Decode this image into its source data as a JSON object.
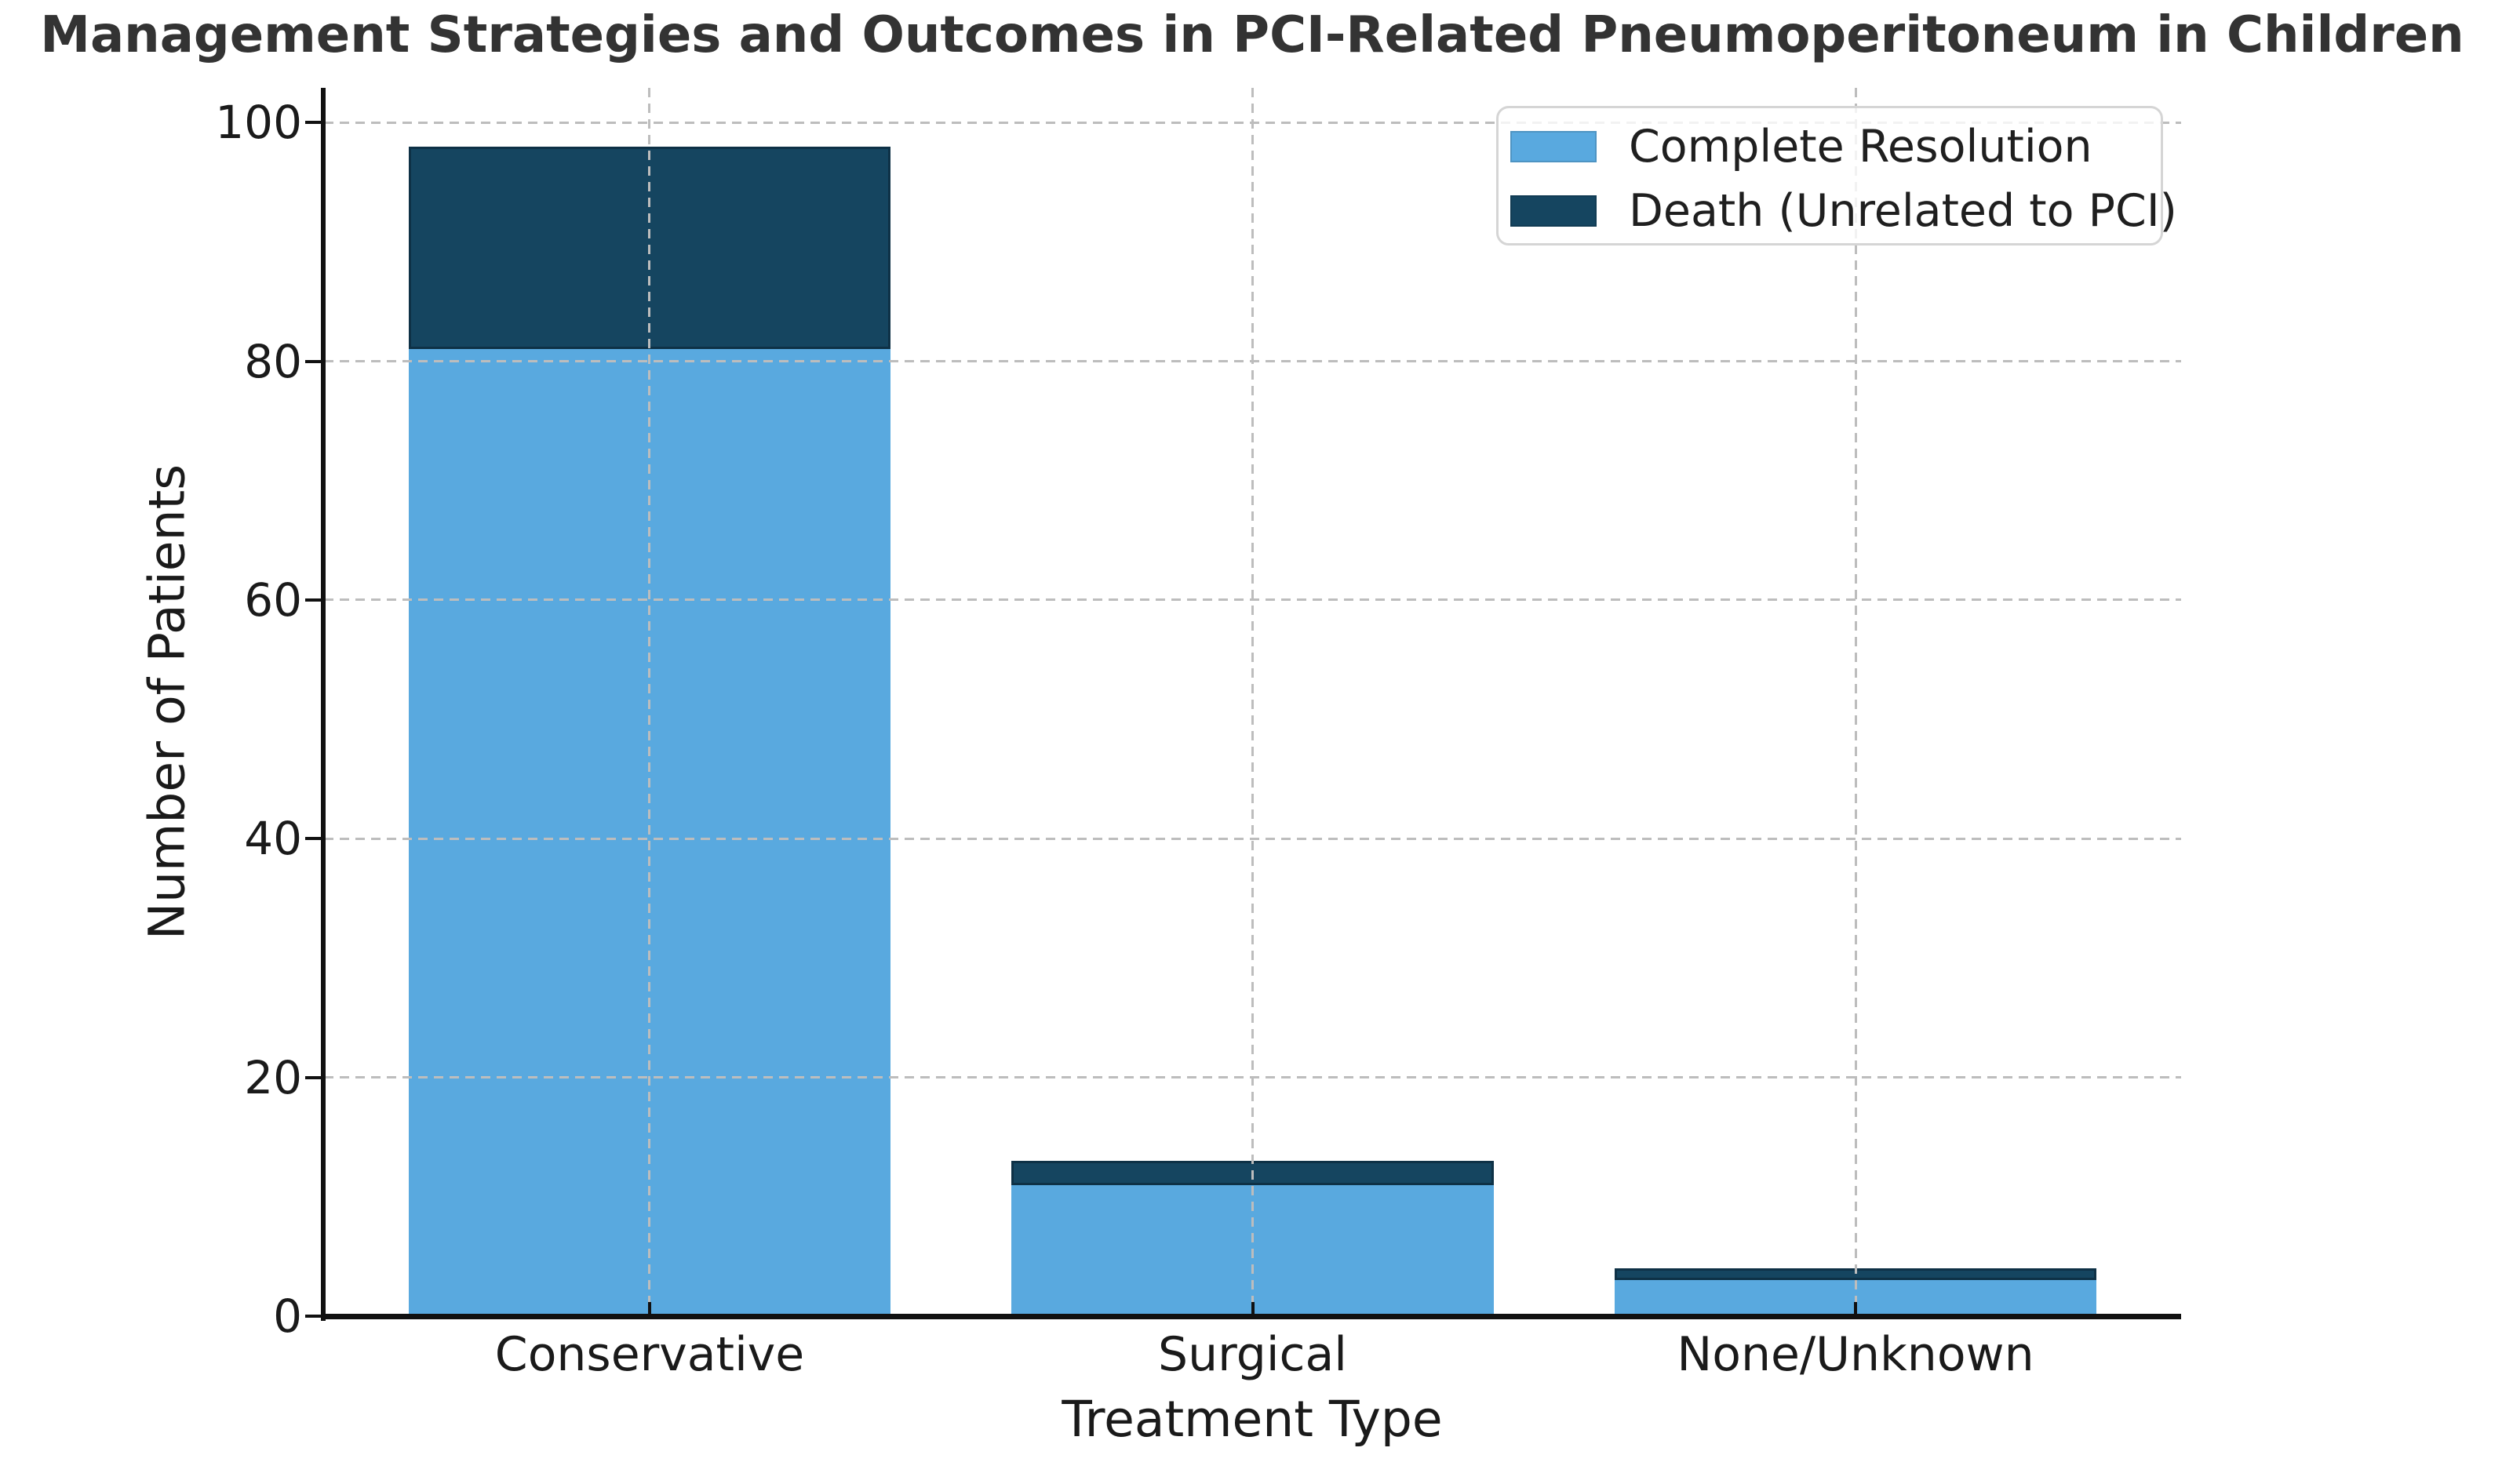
{
  "title": "Management Strategies and Outcomes in PCI-Related Pneumoperitoneum in Children",
  "axes": {
    "x_label": "Treatment Type",
    "y_label": "Number of Patients"
  },
  "legend": {
    "position": "upper-right",
    "items": [
      {
        "label": "Complete Resolution",
        "color": "#59A9DF"
      },
      {
        "label": "Death (Unrelated to PCI)",
        "color": "#154560"
      }
    ]
  },
  "chart_data": {
    "type": "bar",
    "stacked": true,
    "title": "Management Strategies and Outcomes in PCI-Related Pneumoperitoneum in Children",
    "xlabel": "Treatment Type",
    "ylabel": "Number of Patients",
    "categories": [
      "Conservative",
      "Surgical",
      "None/Unknown"
    ],
    "series": [
      {
        "name": "Complete Resolution",
        "color": "#59A9DF",
        "values": [
          81,
          11,
          3
        ]
      },
      {
        "name": "Death (Unrelated to PCI)",
        "color": "#154560",
        "values": [
          17,
          2,
          1
        ]
      }
    ],
    "totals": [
      98,
      13,
      4
    ],
    "yticks": [
      0,
      20,
      40,
      60,
      80,
      100
    ],
    "ylim": [
      0,
      102.9
    ],
    "grid": "dashed gray, horizontal at yticks and vertical at category centers, drawn above bars",
    "legend_position": "upper right"
  },
  "colors": {
    "complete_resolution": "#59A9DF",
    "death_unrelated": "#154560",
    "grid": "#bdbdbd",
    "spine": "#111111",
    "title_text": "#333333",
    "label_text": "#1a1a1a",
    "legend_border": "#d5d5d5",
    "background": "#ffffff"
  }
}
